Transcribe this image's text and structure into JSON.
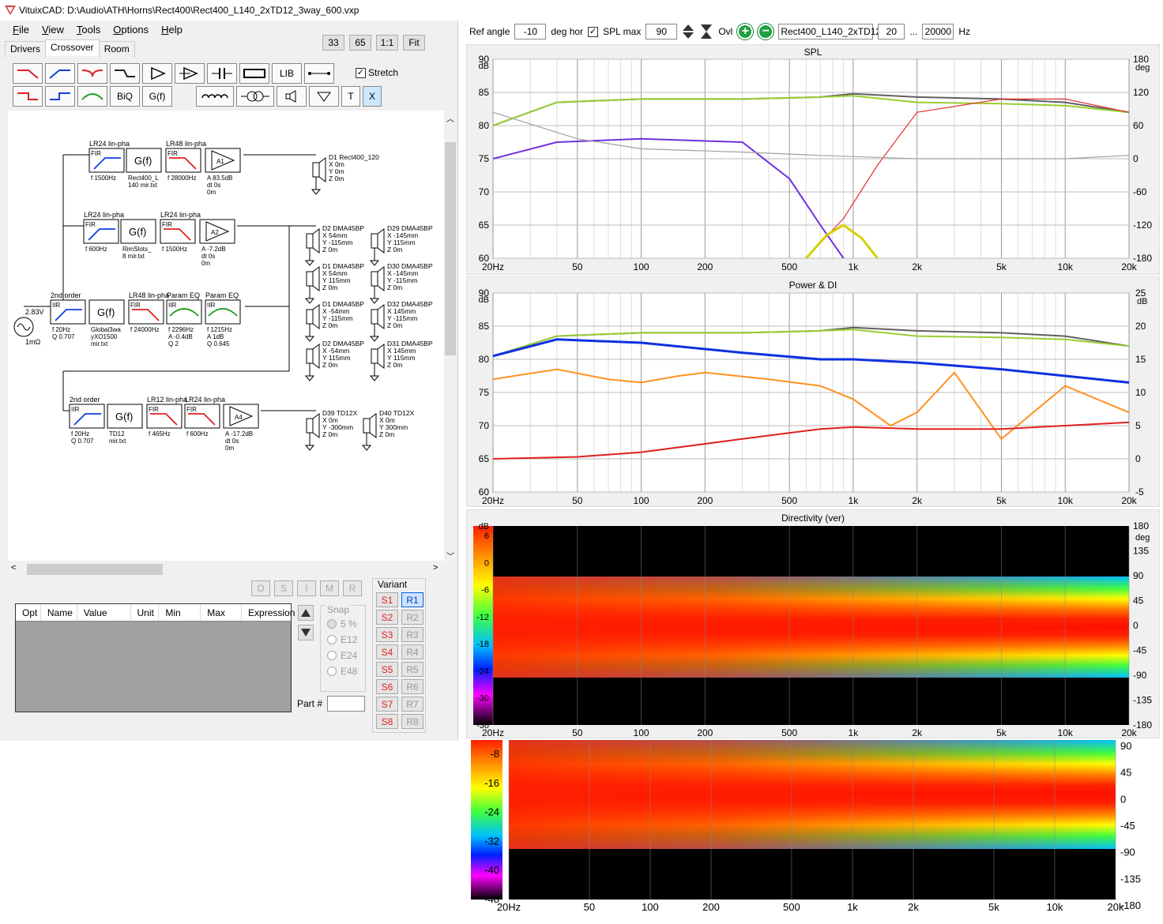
{
  "window": {
    "title": "VituixCAD: D:\\Audio\\ATH\\Horns\\Rect400\\Rect400_L140_2xTD12_3way_600.vxp"
  },
  "menu": [
    "File",
    "View",
    "Tools",
    "Options",
    "Help"
  ],
  "zoom": [
    "33",
    "65",
    "1:1",
    "Fit"
  ],
  "tabs": [
    "Drivers",
    "Crossover",
    "Room"
  ],
  "toolbar": {
    "biq": "BiQ",
    "gf": "G(f)",
    "lib": "LIB",
    "t": "T",
    "x": "X",
    "stretch": "Stretch"
  },
  "schematic": {
    "blocks": [
      {
        "id": "b1",
        "hdr": "LR24 lin-pha",
        "type": "FIR",
        "sub": "f  1500Hz"
      },
      {
        "id": "b2",
        "hdr": "",
        "type": "G(f)",
        "sub": "Rect400_L\n140 mir.txt"
      },
      {
        "id": "b3",
        "hdr": "LR48 lin-pha",
        "type": "FIR",
        "sub": "f  28000Hz"
      },
      {
        "id": "b4",
        "hdr": "",
        "type": "A1",
        "sub": "A  83.5dB\ndt 0s\n0m"
      },
      {
        "id": "b5",
        "hdr": "LR24 lin-pha",
        "type": "FIR",
        "sub": "f  600Hz"
      },
      {
        "id": "b6",
        "hdr": "",
        "type": "G(f)",
        "sub": "RimSlots_\n8 mir.txt"
      },
      {
        "id": "b7",
        "hdr": "LR24 lin-pha",
        "type": "FIR",
        "sub": "f  1500Hz"
      },
      {
        "id": "b8",
        "hdr": "",
        "type": "A2",
        "sub": "A  -7.2dB\ndt 0s\n0m"
      },
      {
        "id": "b9",
        "hdr": "2nd order",
        "type": "IIR",
        "sub": "f  20Hz\nQ 0.707"
      },
      {
        "id": "b10",
        "hdr": "",
        "type": "G(f)",
        "sub": "Global3wa\nyXO1500\nmir.txt"
      },
      {
        "id": "b11",
        "hdr": "LR48 lin-pha",
        "type": "FIR",
        "sub": "f  24000Hz"
      },
      {
        "id": "b12",
        "hdr": "Param EQ",
        "type": "IIR",
        "sub": "f  2296Hz\nA -0.4dB\nQ 2"
      },
      {
        "id": "b13",
        "hdr": "Param EQ",
        "type": "IIR",
        "sub": "f  1215Hz\nA  1dB\nQ 0.645"
      },
      {
        "id": "b14",
        "hdr": "2nd order",
        "type": "IIR",
        "sub": "f  20Hz\nQ 0.707"
      },
      {
        "id": "b15",
        "hdr": "",
        "type": "G(f)",
        "sub": "TD12\nmir.txt"
      },
      {
        "id": "b16",
        "hdr": "LR12 lin-pha",
        "type": "FIR",
        "sub": "f  465Hz"
      },
      {
        "id": "b17",
        "hdr": "LR24 lin-pha",
        "type": "FIR",
        "sub": "f  600Hz"
      },
      {
        "id": "b18",
        "hdr": "",
        "type": "A4",
        "sub": "A  -17.2dB\ndt 0s\n0m"
      }
    ],
    "drivers": [
      {
        "name": "D1 Rect400_120",
        "x": "X 0m",
        "y": "Y 0m",
        "z": "Z 0m"
      },
      {
        "name": "D2 DMA45BP",
        "x": "X 54mm",
        "y": "Y -115mm",
        "z": "Z 0m"
      },
      {
        "name": "D29 DMA45BP",
        "x": "X -145mm",
        "y": "Y 115mm",
        "z": "Z 0m"
      },
      {
        "name": "D1 DMA45BP",
        "x": "X 54mm",
        "y": "Y 115mm",
        "z": "Z 0m"
      },
      {
        "name": "D30 DMA45BP",
        "x": "X -145mm",
        "y": "Y -115mm",
        "z": "Z 0m"
      },
      {
        "name": "D1 DMA45BP",
        "x": "X -54mm",
        "y": "Y -115mm",
        "z": "Z 0m"
      },
      {
        "name": "D32 DMA45BP",
        "x": "X 145mm",
        "y": "Y -115mm",
        "z": "Z 0m"
      },
      {
        "name": "D2 DMA45BP",
        "x": "X -54mm",
        "y": "Y 115mm",
        "z": "Z 0m"
      },
      {
        "name": "D31 DMA45BP",
        "x": "X 145mm",
        "y": "Y 115mm",
        "z": "Z 0m"
      },
      {
        "name": "D39 TD12X",
        "x": "X 0m",
        "y": "Y -300mm",
        "z": "Z 0m"
      },
      {
        "name": "D40 TD12X",
        "x": "X 0m",
        "y": "Y 300mm",
        "z": "Z 0m"
      }
    ],
    "source": {
      "v": "2.83V",
      "r": "1mΩ"
    }
  },
  "part_buttons": [
    "O",
    "S",
    "I",
    "M",
    "R"
  ],
  "param_table": {
    "headers": [
      "Opt",
      "Name",
      "Value",
      "Unit",
      "Min",
      "Max",
      "Expression"
    ]
  },
  "snap": {
    "label": "Snap",
    "options": [
      "5 %",
      "E12",
      "E24",
      "E48"
    ]
  },
  "part_num": "Part #",
  "variant": {
    "label": "Variant",
    "s": [
      "S1",
      "S2",
      "S3",
      "S4",
      "S5",
      "S6",
      "S7",
      "S8"
    ],
    "r": [
      "R1",
      "R2",
      "R3",
      "R4",
      "R5",
      "R6",
      "R7",
      "R8"
    ]
  },
  "controls": {
    "ref_angle_label": "Ref angle",
    "ref_angle": "-10",
    "deg_hor": "deg hor",
    "spl_max_label": "SPL max",
    "spl_max": "90",
    "ovl": "Ovl",
    "file": "Rect400_L140_2xTD12",
    "f_low": "20",
    "dots": "...",
    "f_high": "20000",
    "hz": "Hz"
  },
  "x_ticks": [
    "20Hz",
    "50",
    "100",
    "200",
    "500",
    "1k",
    "2k",
    "5k",
    "10k",
    "20k"
  ],
  "spl_chart": {
    "title": "SPL",
    "y_left": [
      "90",
      "85",
      "80",
      "75",
      "70",
      "65",
      "60"
    ],
    "y_unit": "dB",
    "y_right": [
      "180",
      "120",
      "60",
      "0",
      "-60",
      "-120",
      "-180"
    ],
    "y_right_unit": "deg"
  },
  "power_chart": {
    "title": "Power & DI",
    "y_left": [
      "90",
      "85",
      "80",
      "75",
      "70",
      "65",
      "60"
    ],
    "y_unit": "dB",
    "y_right": [
      "25",
      "20",
      "15",
      "10",
      "5",
      "0",
      "-5"
    ],
    "y_right_unit": "dB"
  },
  "dir_chart": {
    "title": "Directivity (ver)",
    "scale": [
      "6",
      "0",
      "-6",
      "-12",
      "-18",
      "-24",
      "-30",
      "-36"
    ],
    "scale_unit": "dB",
    "y_right": [
      "180",
      "135",
      "90",
      "45",
      "0",
      "-45",
      "-90",
      "-135",
      "-180"
    ],
    "y_right_unit": "deg"
  },
  "dir2_chart": {
    "scale": [
      "-8",
      "-16",
      "-24",
      "-32",
      "-40",
      "-48"
    ],
    "y_right": [
      "90",
      "45",
      "0",
      "-45",
      "-90",
      "-135",
      "-180"
    ]
  },
  "chart_data": [
    {
      "type": "line",
      "title": "SPL",
      "xlabel": "",
      "ylabel": "",
      "x_scale": "log",
      "xlim": [
        20,
        20000
      ],
      "ylim": [
        60,
        90
      ],
      "grid": true,
      "series": [
        {
          "color": "#606060",
          "x": [
            20,
            40,
            100,
            300,
            700,
            1000,
            2000,
            5000,
            10000,
            20000
          ],
          "y": [
            80,
            83.5,
            84,
            84,
            84.3,
            84.8,
            84.3,
            84,
            83.5,
            82
          ]
        },
        {
          "color": "#9acd32",
          "x": [
            20,
            40,
            100,
            300,
            700,
            1000,
            2000,
            5000,
            10000,
            20000
          ],
          "y": [
            80,
            83.5,
            84,
            84,
            84.3,
            84.5,
            83.5,
            83.3,
            83,
            82
          ]
        },
        {
          "color": "#7030e0",
          "x": [
            20,
            40,
            100,
            300,
            500,
            700,
            900
          ],
          "y": [
            75,
            77.5,
            78,
            77.5,
            72,
            65,
            58
          ]
        },
        {
          "color": "#e03030",
          "x": [
            600,
            900,
            1300,
            2000,
            5000,
            10000,
            20000
          ],
          "y": [
            58,
            66,
            74,
            82,
            84,
            84,
            82
          ]
        },
        {
          "color": "#d4d000",
          "x": [
            600,
            750,
            900,
            1100,
            1300
          ],
          "y": [
            60,
            63.5,
            65,
            63,
            60
          ]
        },
        {
          "color": "#a0a0a0",
          "x": [
            20,
            50,
            100,
            300,
            700,
            2000,
            10000,
            20000
          ],
          "y": [
            82,
            78,
            76.5,
            76,
            75.5,
            75,
            75,
            75.5
          ]
        }
      ]
    },
    {
      "type": "line",
      "title": "Power & DI",
      "xlabel": "",
      "ylabel": "",
      "x_scale": "log",
      "xlim": [
        20,
        20000
      ],
      "ylim": [
        60,
        90
      ],
      "grid": true,
      "series": [
        {
          "color": "#606060",
          "x": [
            20,
            40,
            100,
            300,
            700,
            1000,
            2000,
            5000,
            10000,
            20000
          ],
          "y": [
            80.5,
            83.5,
            84,
            84,
            84.3,
            84.8,
            84.3,
            84,
            83.5,
            82
          ]
        },
        {
          "color": "#9acd32",
          "x": [
            20,
            40,
            100,
            300,
            700,
            1000,
            2000,
            5000,
            10000,
            20000
          ],
          "y": [
            80.5,
            83.5,
            84,
            84,
            84.3,
            84.5,
            83.5,
            83.3,
            83,
            82
          ]
        },
        {
          "color": "#1030e0",
          "x": [
            20,
            40,
            100,
            300,
            700,
            1000,
            2000,
            5000,
            10000,
            20000
          ],
          "y": [
            80.5,
            83,
            82.5,
            81,
            80,
            80,
            79.5,
            78.5,
            77.5,
            76.5
          ]
        },
        {
          "color": "#ff9020",
          "x": [
            20,
            40,
            70,
            100,
            150,
            200,
            400,
            700,
            1000,
            1500,
            2000,
            3000,
            5000,
            10000,
            20000
          ],
          "y": [
            77,
            78.5,
            77,
            76.5,
            77.5,
            78,
            77,
            76,
            74,
            70,
            72,
            78,
            68,
            76,
            72
          ]
        },
        {
          "color": "#e02020",
          "x": [
            20,
            50,
            100,
            300,
            700,
            1000,
            2000,
            5000,
            10000,
            20000
          ],
          "y": [
            65,
            65.3,
            66,
            68,
            69.5,
            69.8,
            69.5,
            69.5,
            70,
            70.5
          ]
        }
      ]
    }
  ]
}
